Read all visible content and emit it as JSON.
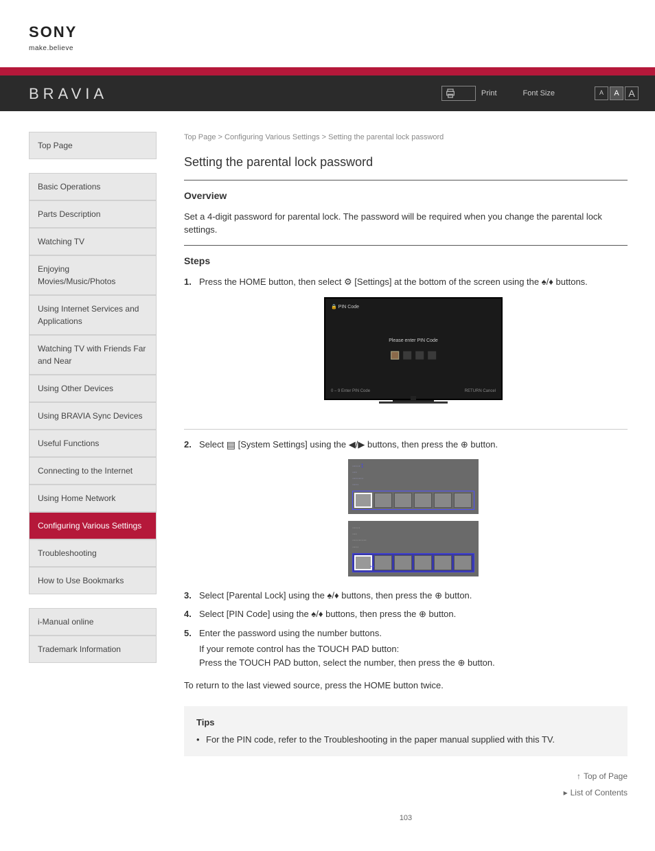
{
  "brand": {
    "name": "SONY",
    "tagline": "make.believe"
  },
  "header": {
    "product": "BRAVIA",
    "print_label": "Print",
    "font_size_label": "Font Size",
    "font_buttons": [
      "A",
      "A",
      "A"
    ]
  },
  "sidebar": {
    "items": [
      {
        "label": "Top Page",
        "active": false
      },
      {
        "label": "Basic Operations",
        "active": false
      },
      {
        "label": "Parts Description",
        "active": false
      },
      {
        "label": "Watching TV",
        "active": false
      },
      {
        "label": "Enjoying Movies/Music/Photos",
        "active": false
      },
      {
        "label": "Using Internet Services and Applications",
        "active": false
      },
      {
        "label": "Watching TV with Friends Far and Near",
        "active": false
      },
      {
        "label": "Using Other Devices",
        "active": false
      },
      {
        "label": "Using BRAVIA Sync Devices",
        "active": false
      },
      {
        "label": "Useful Functions",
        "active": false
      },
      {
        "label": "Connecting to the Internet",
        "active": false
      },
      {
        "label": "Using Home Network",
        "active": false
      },
      {
        "label": "Configuring Various Settings",
        "active": true
      },
      {
        "label": "Troubleshooting",
        "active": false
      },
      {
        "label": "How to Use Bookmarks",
        "active": false
      }
    ],
    "footer": [
      {
        "label": "i-Manual online"
      },
      {
        "label": "Trademark Information"
      }
    ]
  },
  "breadcrumb": "Top Page > Configuring Various Settings > Setting the parental lock password",
  "title": "Setting the parental lock password",
  "overview": {
    "heading": "Overview",
    "text": "Set a 4-digit password for parental lock. The password will be required when you change the parental lock settings."
  },
  "steps_heading": "Steps",
  "steps": [
    {
      "num": "1.",
      "text_before": "Press the HOME button, then select ",
      "text_after": " at the bottom of the screen using the ",
      "text_end": " buttons.",
      "icon": "settings-icon",
      "arrows": "↑/↓",
      "settings_label": "[Settings]"
    },
    {
      "num": "2.",
      "text_before": "Select ",
      "text_mid1": " [System Settings] using the ",
      "text_mid2": " buttons, then press the ",
      "text_end": " button.",
      "icon": "menu-icon",
      "arrows": "←/→",
      "plus": "⊕"
    },
    {
      "num": "3.",
      "text_before": "Select [Parental Lock] using the ",
      "text_mid": " buttons, then press the ",
      "text_end": " button.",
      "arrows": "↑/↓",
      "plus": "⊕"
    },
    {
      "num": "4.",
      "text_before": "Select [PIN Code] using the ",
      "text_mid": " buttons, then press the ",
      "text_end": " button.",
      "arrows": "↑/↓",
      "plus": "⊕"
    },
    {
      "num": "5.",
      "text": "Enter the password using the number buttons.",
      "optional_a": "If your remote control has the TOUCH PAD button:",
      "optional_b": "Press the TOUCH PAD button, select the number, then press the ",
      "optional_end": " button.",
      "plus": "⊕"
    }
  ],
  "return_text": "To return to the last viewed source, press the HOME button twice.",
  "tv_mock": {
    "title": "PIN Code",
    "message": "Please enter PIN Code",
    "footer_left": "0 – 9 Enter PIN Code",
    "footer_right": "RETURN Cancel"
  },
  "tips": {
    "heading": "Tips",
    "text": "For the PIN code, refer to the Troubleshooting in the paper manual supplied with this TV."
  },
  "bottom_links": {
    "top": "Top of Page",
    "list": "List of Contents"
  },
  "page_number": "103",
  "colors": {
    "brand_red": "#b5183a",
    "header_bg": "#2b2b2b",
    "sidebar_bg": "#e8e8e8",
    "tips_bg": "#f3f3f3"
  }
}
